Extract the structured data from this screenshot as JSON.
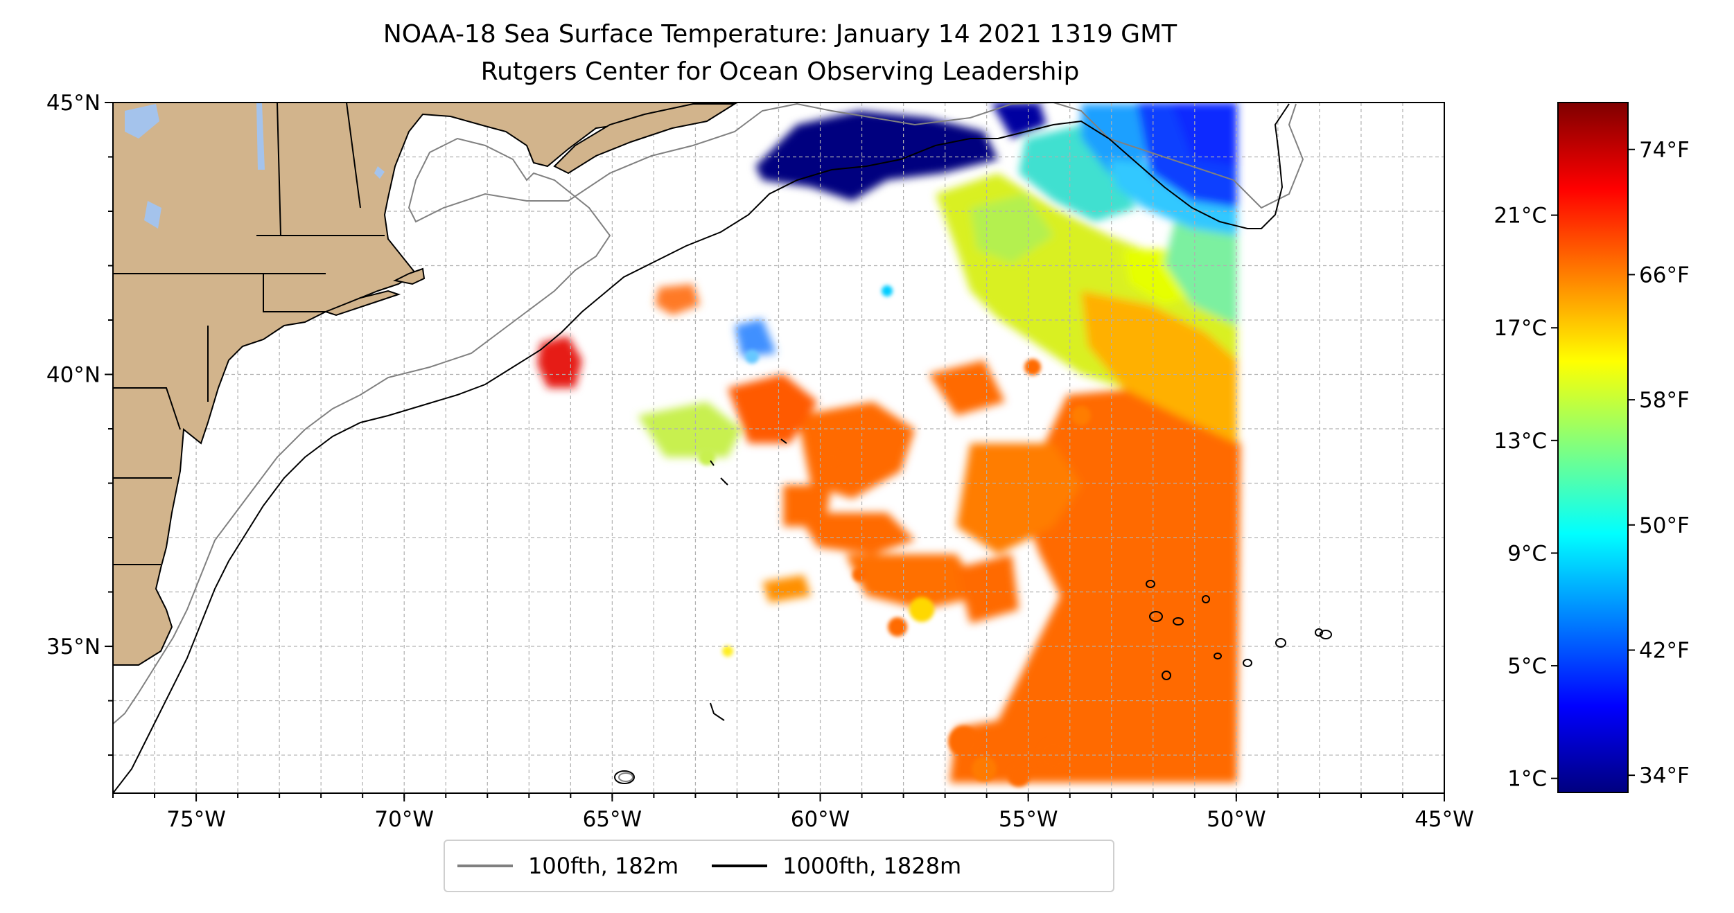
{
  "title": "NOAA-18 Sea Surface Temperature: January 14 2021 1319 GMT",
  "subtitle": "Rutgers Center for Ocean Observing Leadership",
  "map": {
    "lon_range": [
      -77,
      -45
    ],
    "lat_range": [
      32.3,
      45
    ],
    "lon_ticks": [
      {
        "value": -75,
        "label": "75°W"
      },
      {
        "value": -70,
        "label": "70°W"
      },
      {
        "value": -65,
        "label": "65°W"
      },
      {
        "value": -60,
        "label": "60°W"
      },
      {
        "value": -55,
        "label": "55°W"
      },
      {
        "value": -50,
        "label": "50°W"
      },
      {
        "value": -45,
        "label": "45°W"
      }
    ],
    "lat_ticks": [
      {
        "value": 45,
        "label": "45°N"
      },
      {
        "value": 40,
        "label": "40°N"
      },
      {
        "value": 35,
        "label": "35°N"
      }
    ],
    "gridlines": true,
    "colors": {
      "land": "#d2b48c",
      "lakes": "#a4c3ec",
      "isobath_100fth": "#808080",
      "isobath_1000fth": "#000000",
      "ocean_missing": "#ffffff"
    }
  },
  "colorbar": {
    "colormap": "jet",
    "range_c": [
      0.5,
      25
    ],
    "celsius_ticks": [
      {
        "value": 1,
        "label": "1°C"
      },
      {
        "value": 5,
        "label": "5°C"
      },
      {
        "value": 9,
        "label": "9°C"
      },
      {
        "value": 13,
        "label": "13°C"
      },
      {
        "value": 17,
        "label": "17°C"
      },
      {
        "value": 21,
        "label": "21°C"
      }
    ],
    "fahrenheit_ticks": [
      {
        "value": 34,
        "label": "34°F"
      },
      {
        "value": 42,
        "label": "42°F"
      },
      {
        "value": 50,
        "label": "50°F"
      },
      {
        "value": 58,
        "label": "58°F"
      },
      {
        "value": 66,
        "label": "66°F"
      },
      {
        "value": 74,
        "label": "74°F"
      }
    ]
  },
  "legend": [
    {
      "label": "100fth, 182m",
      "color": "#808080"
    },
    {
      "label": "1000fth, 1828m",
      "color": "#000000"
    }
  ]
}
